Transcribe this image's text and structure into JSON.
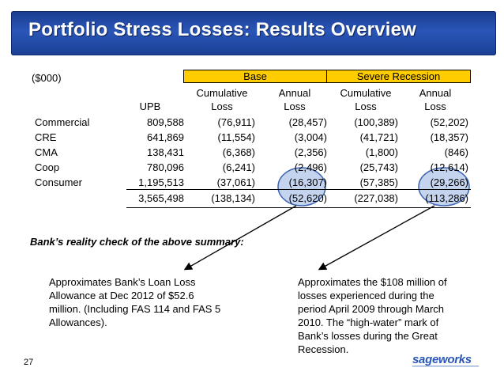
{
  "title": "Portfolio Stress Losses: Results Overview",
  "units_label": "($000)",
  "scenarios": {
    "base": "Base",
    "severe": "Severe Recession"
  },
  "col_headers": {
    "upb": "UPB",
    "base_cum": [
      "Cumulative",
      "Loss"
    ],
    "base_ann": [
      "Annual",
      "Loss"
    ],
    "sev_cum": [
      "Cumulative",
      "Loss"
    ],
    "sev_ann": [
      "Annual",
      "Loss"
    ]
  },
  "rows": [
    {
      "name": "Commercial",
      "upb": "809,588",
      "base_cum": "(76,911)",
      "base_ann": "(28,457)",
      "sev_cum": "(100,389)",
      "sev_ann": "(52,202)"
    },
    {
      "name": "CRE",
      "upb": "641,869",
      "base_cum": "(11,554)",
      "base_ann": "(3,004)",
      "sev_cum": "(41,721)",
      "sev_ann": "(18,357)"
    },
    {
      "name": "CMA",
      "upb": "138,431",
      "base_cum": "(6,368)",
      "base_ann": "(2,356)",
      "sev_cum": "(1,800)",
      "sev_ann": "(846)"
    },
    {
      "name": "Coop",
      "upb": "780,096",
      "base_cum": "(6,241)",
      "base_ann": "(2,496)",
      "sev_cum": "(25,743)",
      "sev_ann": "(12,614)"
    },
    {
      "name": "Consumer",
      "upb": "1,195,513",
      "base_cum": "(37,061)",
      "base_ann": "(16,307)",
      "sev_cum": "(57,385)",
      "sev_ann": "(29,266)"
    }
  ],
  "total": {
    "upb": "3,565,498",
    "base_cum": "(138,134)",
    "base_ann": "(52,620)",
    "sev_cum": "(227,038)",
    "sev_ann": "(113,286)"
  },
  "reality_check": "Bank’s reality check of the above summary:",
  "note_left": [
    "Approximates Bank’s Loan Loss",
    "Allowance at Dec 2012 of $52.6",
    "million. (Including FAS 114 and FAS 5",
    "Allowances)."
  ],
  "note_right": [
    "Approximates the $108 million of",
    "losses experienced during the",
    "period April 2009 through March",
    "2010.  The “high-water” mark of",
    "Bank’s losses during the Great",
    "Recession."
  ],
  "page_number": "27",
  "logo_text": "sageworks",
  "colors": {
    "title_bg": "#1f47a3",
    "scenario_bar": "#ffcc00",
    "highlight": "#c5d4ee",
    "highlight_stroke": "#3d64b0"
  }
}
